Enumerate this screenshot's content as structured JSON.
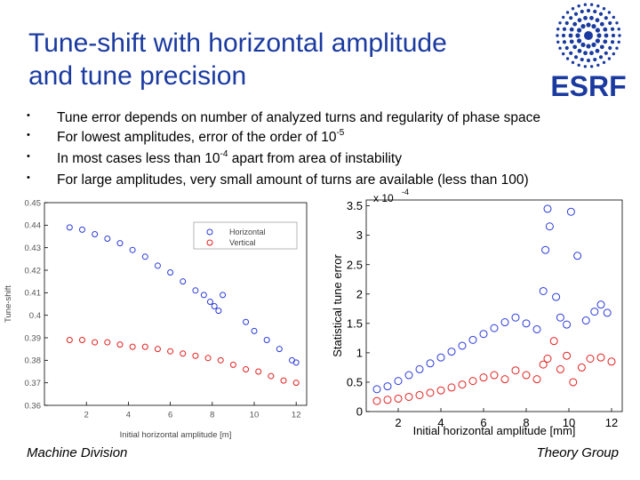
{
  "slide": {
    "title_line1": "Tune-shift with horizontal amplitude",
    "title_line2": "and tune precision",
    "logo_text": "ESRF",
    "bullet_char": "•",
    "bullets": [
      {
        "text": "Tune error depends on number of analyzed turns and regularity of phase space",
        "sup": "",
        "tail": ""
      },
      {
        "text": "For lowest amplitudes, error of the order of 10",
        "sup": "-5",
        "tail": ""
      },
      {
        "text": "In most cases less than  10",
        "sup": "-4",
        "tail": " apart from area of instability"
      },
      {
        "text": "For large amplitudes, very small amount of turns are available (less than 100)",
        "sup": "",
        "tail": ""
      }
    ],
    "footer_left": "Machine Division",
    "footer_right": "Theory Group"
  },
  "colors": {
    "title": "#1a3aa0",
    "horizontal": "#2a3ad8",
    "vertical": "#e0201e",
    "logo": "#1a3aa0"
  },
  "chart_data": [
    {
      "type": "scatter",
      "title": "",
      "xlabel": "Initial horizontal amplitude [m]",
      "ylabel": "Tune-shift",
      "xlim": [
        0,
        12.5
      ],
      "ylim": [
        0.36,
        0.45
      ],
      "xticks": [
        2,
        4,
        6,
        8,
        10,
        12
      ],
      "yticks": [
        0.36,
        0.37,
        0.38,
        0.39,
        0.4,
        0.41,
        0.42,
        0.43,
        0.44,
        0.45
      ],
      "legend": {
        "position": "top-right",
        "entries": [
          "Horizontal",
          "Vertical"
        ]
      },
      "series": [
        {
          "name": "Horizontal",
          "x": [
            1.2,
            1.8,
            2.4,
            3.0,
            3.6,
            4.2,
            4.8,
            5.4,
            6.0,
            6.6,
            7.2,
            7.6,
            7.9,
            8.1,
            8.3,
            8.5,
            9.6,
            10.0,
            10.6,
            11.2,
            11.8,
            12.0
          ],
          "y": [
            0.439,
            0.438,
            0.436,
            0.434,
            0.432,
            0.429,
            0.426,
            0.422,
            0.419,
            0.415,
            0.411,
            0.409,
            0.406,
            0.404,
            0.402,
            0.409,
            0.397,
            0.393,
            0.389,
            0.385,
            0.38,
            0.379
          ]
        },
        {
          "name": "Vertical",
          "x": [
            1.2,
            1.8,
            2.4,
            3.0,
            3.6,
            4.2,
            4.8,
            5.4,
            6.0,
            6.6,
            7.2,
            7.8,
            8.4,
            9.0,
            9.6,
            10.2,
            10.8,
            11.4,
            12.0
          ],
          "y": [
            0.389,
            0.389,
            0.388,
            0.388,
            0.387,
            0.386,
            0.386,
            0.385,
            0.384,
            0.383,
            0.382,
            0.381,
            0.38,
            0.378,
            0.376,
            0.375,
            0.373,
            0.371,
            0.37
          ]
        }
      ]
    },
    {
      "type": "scatter",
      "title": "",
      "xlabel": "Initial horizontal amplitude [mm]",
      "ylabel": "Statistical tune error",
      "scale_label": "x 10",
      "scale_exp": "-4",
      "xlim": [
        0.5,
        12.5
      ],
      "ylim": [
        0,
        3.6
      ],
      "xticks": [
        2,
        4,
        6,
        8,
        10,
        12
      ],
      "yticks": [
        0,
        0.5,
        1,
        1.5,
        2,
        2.5,
        3,
        3.5
      ],
      "series": [
        {
          "name": "Horizontal",
          "x": [
            1.0,
            1.5,
            2.0,
            2.5,
            3.0,
            3.5,
            4.0,
            4.5,
            5.0,
            5.5,
            6.0,
            6.5,
            7.0,
            7.5,
            8.0,
            8.5,
            8.8,
            8.9,
            9.0,
            9.1,
            9.4,
            9.6,
            9.9,
            10.1,
            10.4,
            10.8,
            11.2,
            11.5,
            11.8
          ],
          "y": [
            0.38,
            0.43,
            0.52,
            0.62,
            0.72,
            0.82,
            0.92,
            1.02,
            1.12,
            1.22,
            1.32,
            1.42,
            1.52,
            1.6,
            1.5,
            1.4,
            2.05,
            2.75,
            3.45,
            3.15,
            1.95,
            1.6,
            1.48,
            3.4,
            2.65,
            1.55,
            1.7,
            1.82,
            1.68
          ]
        },
        {
          "name": "Vertical",
          "x": [
            1.0,
            1.5,
            2.0,
            2.5,
            3.0,
            3.5,
            4.0,
            4.5,
            5.0,
            5.5,
            6.0,
            6.5,
            7.0,
            7.5,
            8.0,
            8.5,
            8.8,
            9.0,
            9.3,
            9.6,
            9.9,
            10.2,
            10.6,
            11.0,
            11.5,
            12.0
          ],
          "y": [
            0.18,
            0.2,
            0.22,
            0.25,
            0.28,
            0.32,
            0.36,
            0.41,
            0.46,
            0.52,
            0.58,
            0.62,
            0.55,
            0.7,
            0.62,
            0.55,
            0.8,
            0.9,
            1.2,
            0.72,
            0.95,
            0.5,
            0.75,
            0.9,
            0.92,
            0.85
          ]
        }
      ]
    }
  ]
}
